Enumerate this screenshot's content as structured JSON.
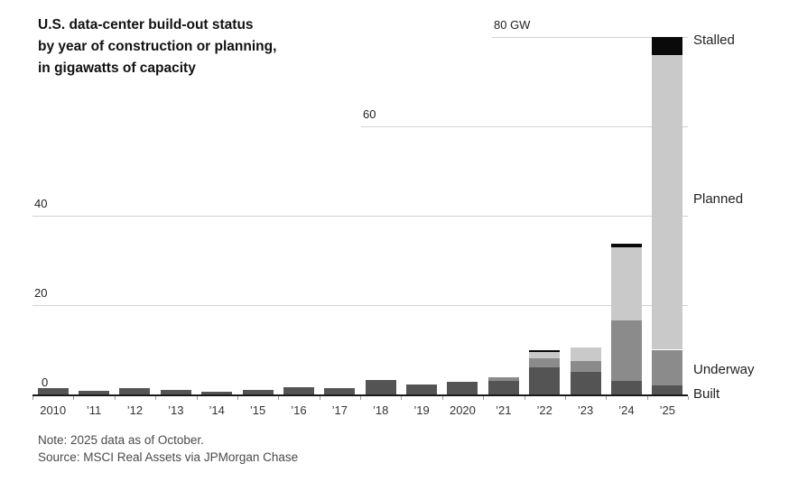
{
  "chart_data": {
    "type": "bar",
    "stacked": true,
    "title_lines": [
      "U.S. data-center build-out status",
      "by year of construction or planning,",
      "in gigawatts of capacity"
    ],
    "categories": [
      "2010",
      "’11",
      "’12",
      "’13",
      "’14",
      "’15",
      "’16",
      "’17",
      "’18",
      "’19",
      "2020",
      "’21",
      "’22",
      "’23",
      "’24",
      "’25"
    ],
    "series": [
      {
        "name": "Built",
        "color": "#545454",
        "values": [
          1.4,
          0.8,
          1.5,
          1.0,
          0.7,
          1.1,
          1.7,
          1.4,
          3.2,
          2.2,
          2.8,
          3.0,
          6.0,
          5.0,
          3.0,
          2.0
        ]
      },
      {
        "name": "Underway",
        "color": "#8b8b8b",
        "values": [
          0,
          0,
          0,
          0,
          0,
          0,
          0,
          0,
          0,
          0,
          0,
          0.8,
          2.0,
          2.5,
          13.5,
          8.0
        ]
      },
      {
        "name": "Planned",
        "color": "#c9c9c9",
        "values": [
          0,
          0,
          0,
          0,
          0,
          0,
          0,
          0,
          0,
          0,
          0,
          0,
          1.5,
          3.0,
          16.5,
          66.0
        ]
      },
      {
        "name": "Stalled",
        "color": "#0a0a0a",
        "values": [
          0,
          0,
          0,
          0,
          0,
          0,
          0,
          0,
          0,
          0,
          0,
          0,
          0.5,
          0,
          0.7,
          4.0
        ]
      }
    ],
    "yticks": [
      {
        "value": 0,
        "label": "0"
      },
      {
        "value": 20,
        "label": "20"
      },
      {
        "value": 40,
        "label": "40"
      },
      {
        "value": 60,
        "label": "60"
      },
      {
        "value": 80,
        "label": "80 GW"
      }
    ],
    "ylim": [
      0,
      80
    ],
    "unit": "GW",
    "grid": "partial-horizontal",
    "legend_position": "right"
  },
  "footer": {
    "note": "Note: 2025 data as of October.",
    "source": "Source: MSCI Real Assets via JPMorgan Chase"
  }
}
